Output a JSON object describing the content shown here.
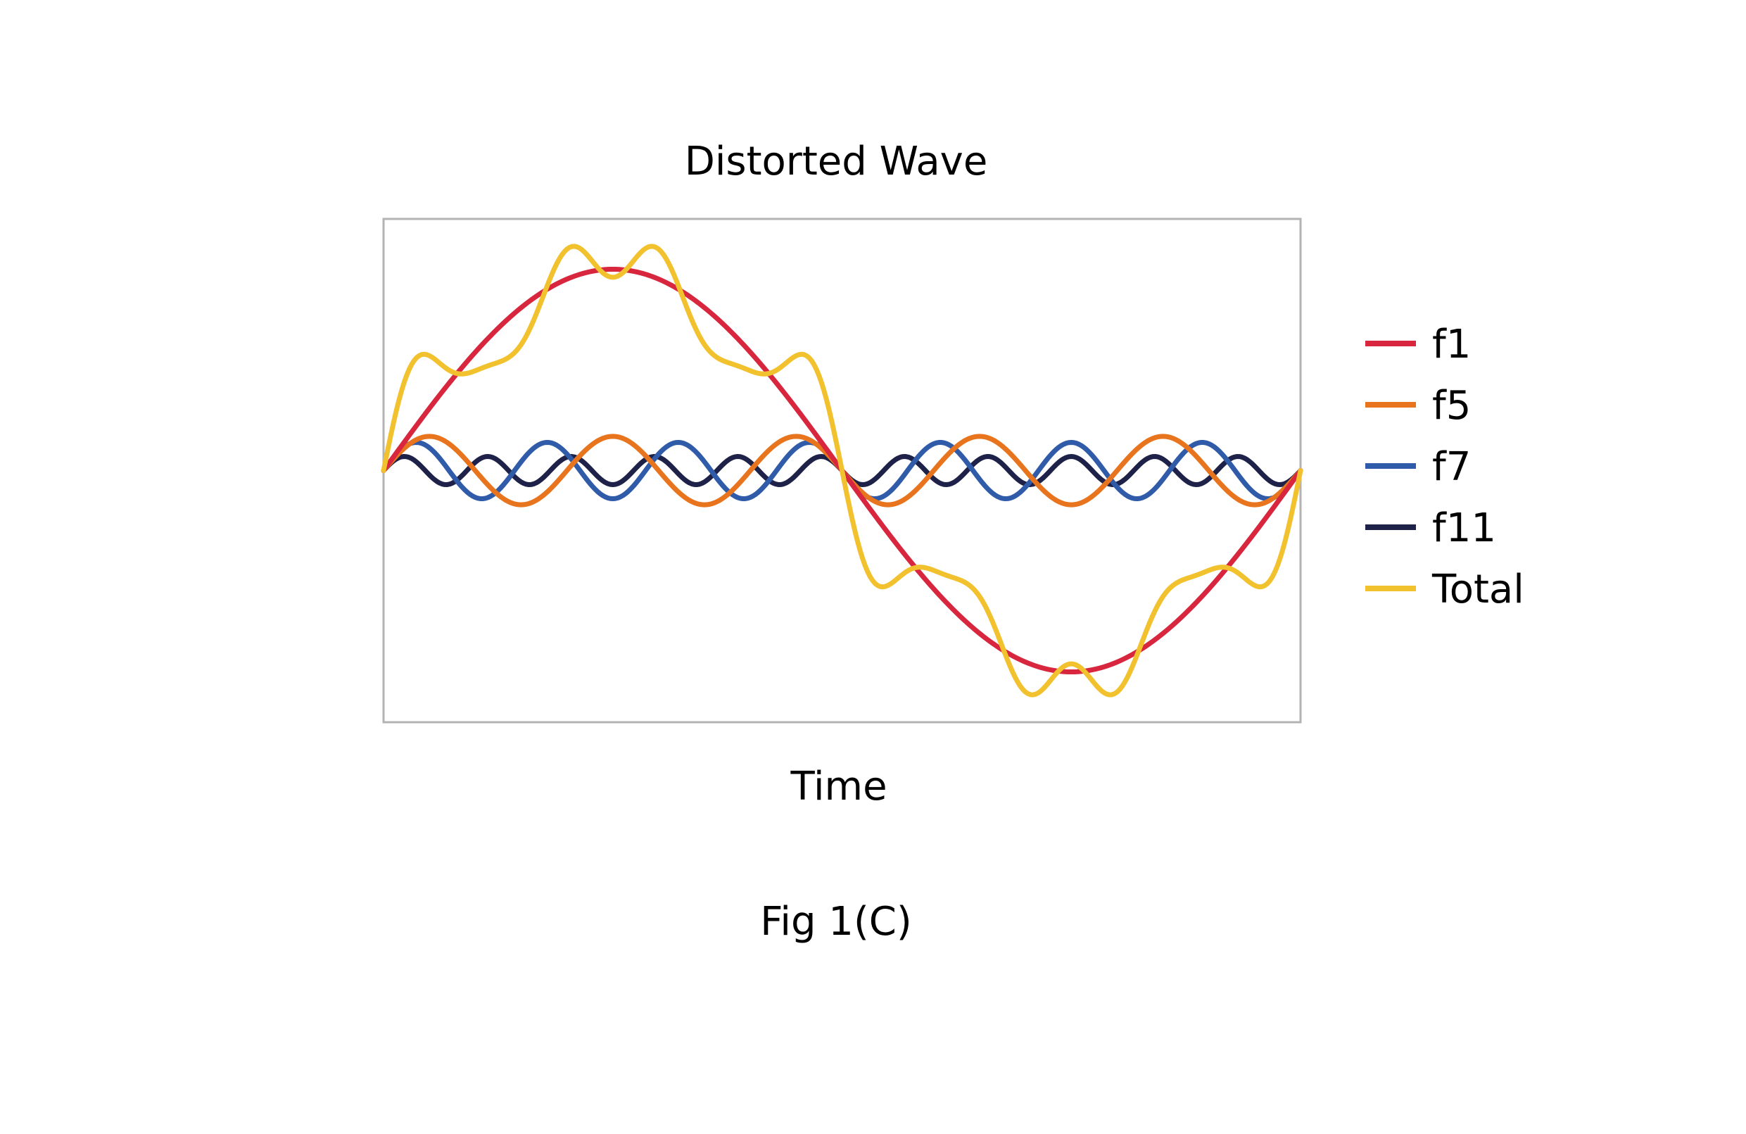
{
  "chart_data": {
    "type": "line",
    "title": "Distorted Wave",
    "xlabel": "Time",
    "ylabel": "",
    "caption": "Fig 1(C)",
    "x_range": [
      0,
      360
    ],
    "ylim": [
      -1.25,
      1.25
    ],
    "grid": false,
    "legend_position": "right",
    "x_samples": 361,
    "series": [
      {
        "name": "f1",
        "color": "#d7263d",
        "harmonic": 1,
        "amplitude": 1.0,
        "phase_deg": 0
      },
      {
        "name": "f5",
        "color": "#e8741e",
        "harmonic": 5,
        "amplitude": 0.17,
        "phase_deg": 0
      },
      {
        "name": "f7",
        "color": "#2f5ba8",
        "harmonic": 7,
        "amplitude": 0.14,
        "phase_deg": 0
      },
      {
        "name": "f11",
        "color": "#1e2148",
        "harmonic": 11,
        "amplitude": 0.07,
        "phase_deg": 0
      },
      {
        "name": "Total",
        "color": "#f2c12e",
        "sum_of": [
          "f1",
          "f5",
          "f7",
          "f11"
        ]
      }
    ]
  }
}
